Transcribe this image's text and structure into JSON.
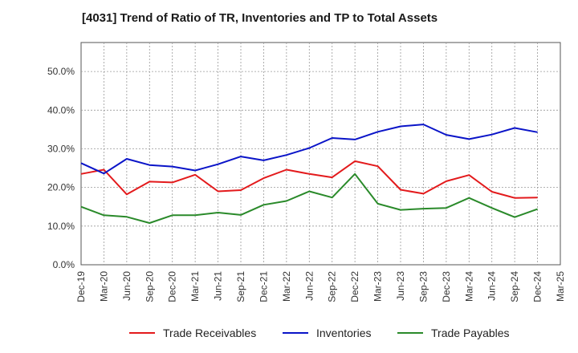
{
  "chart_data": {
    "type": "line",
    "title": "[4031]  Trend of Ratio of TR, Inventories and TP to Total Assets",
    "xlabel": "",
    "ylabel": "",
    "ylim": [
      0,
      57.5
    ],
    "yticks": [
      0,
      10,
      20,
      30,
      40,
      50
    ],
    "yticklabels": [
      "0.0%",
      "10.0%",
      "20.0%",
      "30.0%",
      "40.0%",
      "50.0%"
    ],
    "x": [
      "Dec-19",
      "Mar-20",
      "Jun-20",
      "Sep-20",
      "Dec-20",
      "Mar-21",
      "Jun-21",
      "Sep-21",
      "Dec-21",
      "Mar-22",
      "Jun-22",
      "Sep-22",
      "Dec-22",
      "Mar-23",
      "Jun-23",
      "Sep-23",
      "Dec-23",
      "Mar-24",
      "Jun-24",
      "Sep-24",
      "Dec-24",
      "Mar-25"
    ],
    "grid": true,
    "legend_position": "bottom",
    "series": [
      {
        "name": "Trade Receivables",
        "color": "#e31a1c",
        "values": [
          23.5,
          24.6,
          18.2,
          21.5,
          21.3,
          23.3,
          19.0,
          19.3,
          22.4,
          24.6,
          23.5,
          22.6,
          26.8,
          25.5,
          19.4,
          18.4,
          21.6,
          23.2,
          18.9,
          17.3,
          17.4,
          null
        ]
      },
      {
        "name": "Inventories",
        "color": "#0a14c8",
        "values": [
          26.3,
          23.6,
          27.4,
          25.8,
          25.4,
          24.4,
          26.0,
          28.0,
          27.0,
          28.4,
          30.2,
          32.8,
          32.4,
          34.4,
          35.8,
          36.3,
          33.6,
          32.5,
          33.7,
          35.4,
          34.3,
          null
        ]
      },
      {
        "name": "Trade Payables",
        "color": "#2a8a2a",
        "values": [
          15.0,
          12.8,
          12.4,
          10.8,
          12.8,
          12.8,
          13.5,
          12.9,
          15.5,
          16.5,
          19.0,
          17.4,
          23.5,
          15.8,
          14.2,
          14.5,
          14.7,
          17.3,
          14.7,
          12.3,
          14.4,
          null
        ]
      }
    ]
  }
}
